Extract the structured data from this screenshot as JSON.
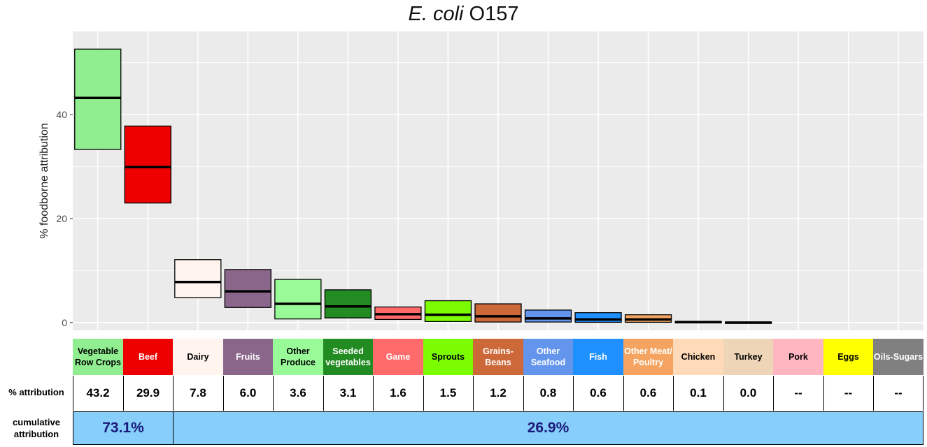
{
  "title": {
    "italic": "E. coli",
    "rest": " O157"
  },
  "table": {
    "attribution_label": "% attribution",
    "cumulative_label_line1": "cumulative",
    "cumulative_label_line2": "attribution",
    "cumulative_values": [
      "73.1%",
      "26.9%"
    ]
  },
  "colors": {
    "panel": "#ebebeb",
    "grid": "#ffffff",
    "cumulative": "#87cefa"
  },
  "chart_data": {
    "type": "bar",
    "ylabel": "% foodborne attribution",
    "ylim": [
      -1.5,
      56
    ],
    "yticks": [
      0,
      20,
      40
    ],
    "grid": true,
    "categories": [
      {
        "label": "Vegetable Row Crops",
        "color": "#90ee90",
        "text_color": "#000000",
        "low": 33.3,
        "median": 43.2,
        "high": 52.6,
        "value": "43.2"
      },
      {
        "label": "Beef",
        "color": "#ee0000",
        "text_color": "#ffffff",
        "low": 23.0,
        "median": 29.9,
        "high": 37.8,
        "value": "29.9"
      },
      {
        "label": "Dairy",
        "color": "#fff5ee",
        "text_color": "#000000",
        "low": 4.8,
        "median": 7.8,
        "high": 12.1,
        "value": "7.8"
      },
      {
        "label": "Fruits",
        "color": "#8b668b",
        "text_color": "#ffffff",
        "low": 2.9,
        "median": 6.0,
        "high": 10.2,
        "value": "6.0"
      },
      {
        "label": "Other Produce",
        "color": "#98fb98",
        "text_color": "#000000",
        "low": 0.7,
        "median": 3.6,
        "high": 8.3,
        "value": "3.6"
      },
      {
        "label": "Seeded vegetables",
        "color": "#228b22",
        "text_color": "#ffffff",
        "low": 0.9,
        "median": 3.1,
        "high": 6.3,
        "value": "3.1"
      },
      {
        "label": "Game",
        "color": "#ff6a6a",
        "text_color": "#ffffff",
        "low": 0.6,
        "median": 1.6,
        "high": 3.0,
        "value": "1.6"
      },
      {
        "label": "Sprouts",
        "color": "#7cfc00",
        "text_color": "#000000",
        "low": 0.2,
        "median": 1.5,
        "high": 4.2,
        "value": "1.5"
      },
      {
        "label": "Grains-Beans",
        "color": "#cd6839",
        "text_color": "#ffffff",
        "low": 0.1,
        "median": 1.2,
        "high": 3.6,
        "value": "1.2"
      },
      {
        "label": "Other Seafood",
        "color": "#6495ed",
        "text_color": "#ffffff",
        "low": 0.1,
        "median": 0.8,
        "high": 2.4,
        "value": "0.8"
      },
      {
        "label": "Fish",
        "color": "#1e90ff",
        "text_color": "#ffffff",
        "low": 0.05,
        "median": 0.6,
        "high": 1.9,
        "value": "0.6"
      },
      {
        "label": "Other Meat/ Poultry",
        "color": "#f4a460",
        "text_color": "#ffffff",
        "low": 0.05,
        "median": 0.6,
        "high": 1.5,
        "value": "0.6"
      },
      {
        "label": "Chicken",
        "color": "#ffdab9",
        "text_color": "#000000",
        "low": 0.0,
        "median": 0.1,
        "high": 0.2,
        "value": "0.1"
      },
      {
        "label": "Turkey",
        "color": "#eed5b7",
        "text_color": "#000000",
        "low": 0.0,
        "median": 0.0,
        "high": 0.1,
        "value": "0.0"
      },
      {
        "label": "Pork",
        "color": "#ffb6c1",
        "text_color": "#000000",
        "value": "--"
      },
      {
        "label": "Eggs",
        "color": "#ffff00",
        "text_color": "#000000",
        "value": "--"
      },
      {
        "label": "Oils-Sugars",
        "color": "#808080",
        "text_color": "#ffffff",
        "value": "--"
      }
    ]
  }
}
